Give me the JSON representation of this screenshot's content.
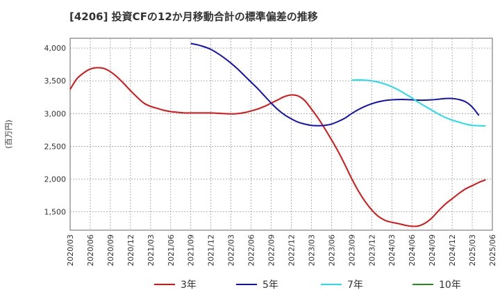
{
  "chart_data": {
    "type": "line",
    "title": "[4206]  投資CFの12か月移動合計の標準偏差の推移",
    "ylabel": "(百万円)",
    "xlabel": "",
    "ylim": [
      1220,
      4150
    ],
    "yticks": [
      1500,
      2000,
      2500,
      3000,
      3500,
      4000
    ],
    "ytick_labels": [
      "1,500",
      "2,000",
      "2,500",
      "3,000",
      "3,500",
      "4,000"
    ],
    "xticks": [
      "2020/03",
      "2020/06",
      "2020/09",
      "2020/12",
      "2021/03",
      "2021/06",
      "2021/09",
      "2021/12",
      "2022/03",
      "2022/06",
      "2022/09",
      "2022/12",
      "2023/03",
      "2023/06",
      "2023/09",
      "2023/12",
      "2024/03",
      "2024/06",
      "2024/09",
      "2024/12",
      "2025/03",
      "2025/06"
    ],
    "grid": true,
    "legend_position": "bottom",
    "series": [
      {
        "name": "3年",
        "color": "#dd1111",
        "start": "2020/03",
        "values": [
          3370,
          3530,
          3620,
          3680,
          3700,
          3690,
          3640,
          3560,
          3460,
          3350,
          3250,
          3160,
          3110,
          3080,
          3050,
          3030,
          3020,
          3010,
          3010,
          3010,
          3010,
          3010,
          3005,
          3000,
          2995,
          3000,
          3015,
          3040,
          3070,
          3110,
          3160,
          3210,
          3260,
          3285,
          3270,
          3200,
          3070,
          2930,
          2770,
          2600,
          2420,
          2220,
          2010,
          1820,
          1660,
          1530,
          1430,
          1370,
          1340,
          1320,
          1295,
          1280,
          1285,
          1330,
          1410,
          1520,
          1620,
          1700,
          1780,
          1850,
          1900,
          1950,
          1990
        ]
      },
      {
        "name": "5年",
        "color": "#1111bb",
        "start": "2021/09",
        "values": [
          4070,
          4050,
          4020,
          3980,
          3920,
          3850,
          3770,
          3680,
          3580,
          3480,
          3380,
          3270,
          3160,
          3060,
          2980,
          2920,
          2870,
          2840,
          2820,
          2815,
          2820,
          2840,
          2880,
          2930,
          3000,
          3060,
          3110,
          3150,
          3180,
          3200,
          3210,
          3215,
          3215,
          3210,
          3205,
          3205,
          3210,
          3220,
          3230,
          3230,
          3215,
          3180,
          3100,
          2970
        ]
      },
      {
        "name": "7年",
        "color": "#22ddee",
        "start": "2023/09",
        "values": [
          3510,
          3515,
          3510,
          3500,
          3480,
          3450,
          3410,
          3360,
          3300,
          3240,
          3170,
          3110,
          3050,
          2990,
          2940,
          2900,
          2870,
          2840,
          2820,
          2815,
          2810
        ]
      },
      {
        "name": "10年",
        "color": "#228822",
        "start": "2025/06",
        "values": []
      }
    ]
  }
}
